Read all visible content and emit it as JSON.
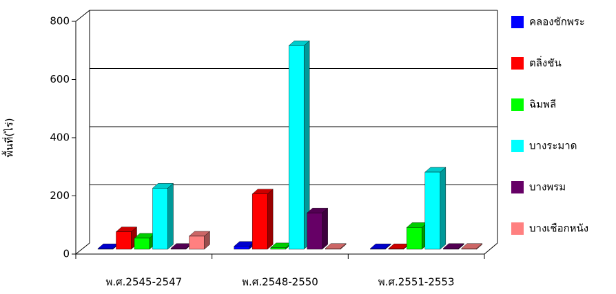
{
  "chart_data": {
    "type": "bar3d",
    "y_label": "พื้นที่(ไร่)",
    "categories": [
      "พ.ศ.2545-2547",
      "พ.ศ.2548-2550",
      "พ.ศ.2551-2553"
    ],
    "series": [
      {
        "name": "คลองชักพระ",
        "color": "#0000ff",
        "values": [
          2,
          10,
          2
        ]
      },
      {
        "name": "ตลิ่งชัน",
        "color": "#ff0000",
        "values": [
          60,
          190,
          2
        ]
      },
      {
        "name": "ฉิมพลี",
        "color": "#00ff00",
        "values": [
          38,
          5,
          75
        ]
      },
      {
        "name": "บางระมาด",
        "color": "#00ffff",
        "values": [
          210,
          700,
          265
        ]
      },
      {
        "name": "บางพรม",
        "color": "#660066",
        "values": [
          3,
          125,
          3
        ]
      },
      {
        "name": "บางเชือกหนัง",
        "color": "#ff8080",
        "values": [
          45,
          3,
          3
        ]
      }
    ],
    "ylim": [
      0,
      800
    ],
    "yticks": [
      0,
      200,
      400,
      600,
      800
    ],
    "grid": true
  }
}
